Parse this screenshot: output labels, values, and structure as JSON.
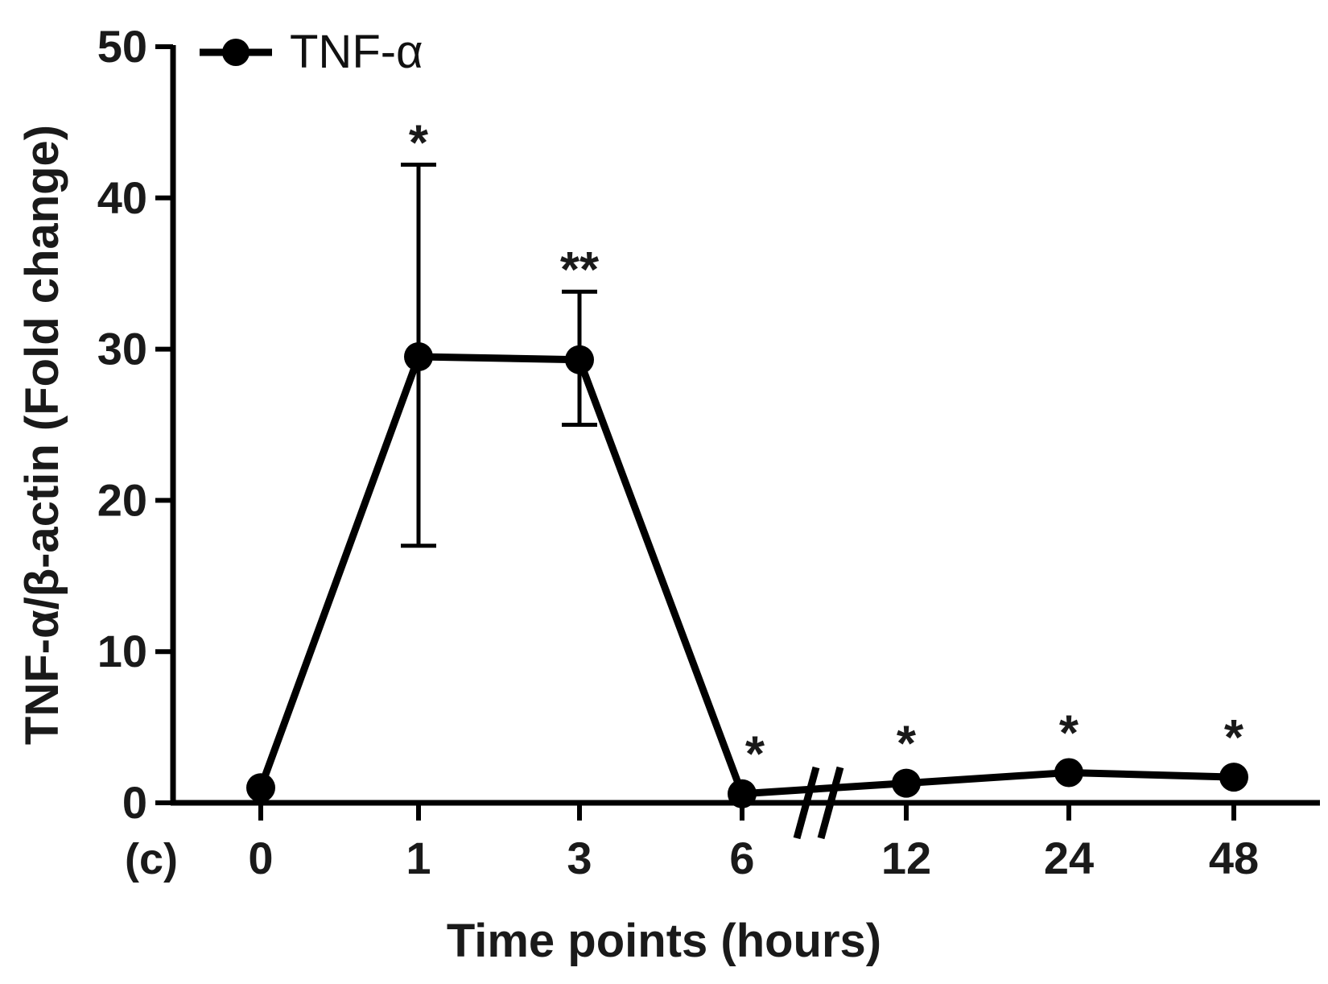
{
  "chart_data": {
    "type": "line",
    "panel_label": "(c)",
    "xlabel": "Time points (hours)",
    "ylabel": "TNF-α/β-actin (Fold change)",
    "ylim": [
      0,
      50
    ],
    "yticks": [
      0,
      10,
      20,
      30,
      40,
      50
    ],
    "categories": [
      "0",
      "1",
      "3",
      "6",
      "12",
      "24",
      "48"
    ],
    "axis_break_after": "6",
    "legend": {
      "placement": "top-left",
      "entries": [
        "TNF-α"
      ]
    },
    "series": [
      {
        "name": "TNF-α",
        "color": "#000000",
        "marker": "circle",
        "values": [
          1.0,
          29.5,
          29.3,
          0.6,
          1.3,
          2.0,
          1.7
        ],
        "error_upper": [
          null,
          42.2,
          33.8,
          null,
          null,
          null,
          null
        ],
        "error_lower": [
          null,
          17.0,
          25.0,
          null,
          null,
          null,
          null
        ],
        "significance": [
          "",
          "*",
          "**",
          "*",
          "*",
          "*",
          "*"
        ]
      }
    ],
    "grid": false
  }
}
